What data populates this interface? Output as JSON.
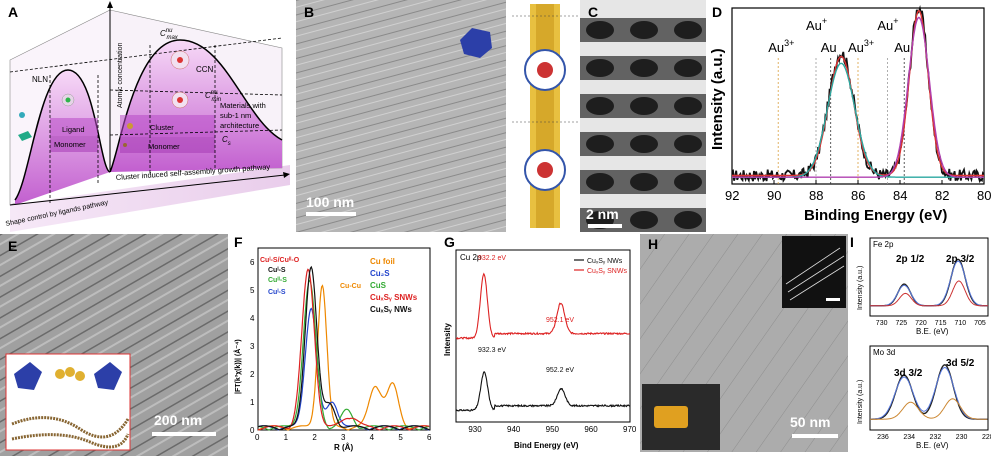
{
  "panel_labels": {
    "A": "A",
    "B": "B",
    "C": "C",
    "D": "D",
    "E": "E",
    "F": "F",
    "G": "G",
    "H": "H",
    "I": "I"
  },
  "panel_A": {
    "atomic_concentration": "Atomic concentration",
    "cnu_max": "C",
    "cnu_max_sup": "nu",
    "cnu_max_sub": "max",
    "ccn": "CCN",
    "nln": "NLN",
    "cnu_min": "C",
    "cnu_min_sup": "nu",
    "cnu_min_sub": "min",
    "materials": [
      "Materials with",
      "sub-1 nm",
      "architecture"
    ],
    "ligand": "Ligand",
    "monomer_left": "Monomer",
    "cluster": "Cluster",
    "cs": "C",
    "cs_sub": "s",
    "monomer_right": "Monomer",
    "pathway_left": "Shape control by ligands pathway",
    "pathway_right": "Cluster induced self-assembly growth pathway"
  },
  "panel_B": {
    "scale": "100 nm"
  },
  "panel_C": {
    "scale": "2 nm"
  },
  "panel_E": {
    "scale": "200 nm"
  },
  "panel_H": {
    "scale": "50 nm"
  },
  "chart_data": [
    {
      "id": "D",
      "type": "line",
      "xlabel": "Binding Energy (eV)",
      "ylabel": "Intensity (a.u.)",
      "xlim": [
        92,
        80
      ],
      "xticks": [
        "92",
        "90",
        "88",
        "86",
        "84",
        "82",
        "80"
      ],
      "annotations": [
        {
          "text": "Au",
          "sup": "3+",
          "x": 89.8
        },
        {
          "text": "Au",
          "sup": "+",
          "x": 88.0
        },
        {
          "text": "Au",
          "sup": "",
          "x": 87.3
        },
        {
          "text": "Au",
          "sup": "3+",
          "x": 86.0
        },
        {
          "text": "Au",
          "sup": "+",
          "x": 84.6
        },
        {
          "text": "Au",
          "sup": "",
          "x": 83.8
        }
      ],
      "series": [
        {
          "color": "#111111",
          "peaks": [
            [
              86.8,
              0.72,
              0.6
            ],
            [
              83.1,
              0.99,
              0.45
            ]
          ],
          "noise": 0.035,
          "baseline": 0.05
        },
        {
          "color": "#dd3333",
          "peaks": [
            [
              86.8,
              0.7,
              0.6
            ],
            [
              83.1,
              0.97,
              0.45
            ]
          ],
          "noise": 0,
          "baseline": 0.05
        },
        {
          "color": "#2aa8a0",
          "peaks": [
            [
              86.8,
              0.67,
              0.65
            ]
          ],
          "noise": 0,
          "baseline": 0.04
        },
        {
          "color": "#b040b0",
          "peaks": [
            [
              83.1,
              0.94,
              0.5
            ]
          ],
          "noise": 0,
          "baseline": 0.04
        }
      ]
    },
    {
      "id": "F",
      "type": "line",
      "xlabel": "R (Å)",
      "ylabel": "|FT(k³χ(k))| (Å⁻⁴)",
      "xlim": [
        0,
        6
      ],
      "ylim": [
        0,
        6.5
      ],
      "xticks": [
        "0",
        "1",
        "2",
        "3",
        "4",
        "5",
        "6"
      ],
      "yticks": [
        "0",
        "1",
        "2",
        "3",
        "4",
        "5",
        "6"
      ],
      "annotations": [
        {
          "text": "Cuᴵ-S/Cuᴵᴵ-O",
          "color": "#dd2222"
        },
        {
          "text": "Cuᴵ-S",
          "color": "#111111"
        },
        {
          "text": "Cuᴵᴵ-S",
          "color": "#33aa33"
        },
        {
          "text": "Cuᴵ-S",
          "color": "#2244cc"
        },
        {
          "text": "Cu-Cu",
          "color": "#ee8800"
        }
      ],
      "series": [
        {
          "name": "Cu foil",
          "color": "#ee8800",
          "peaks": [
            [
              2.24,
              5.1,
              0.16
            ],
            [
              4.1,
              1.5,
              0.22
            ],
            [
              4.7,
              1.5,
              0.2
            ]
          ]
        },
        {
          "name": "Cu₂S",
          "color": "#2244cc",
          "peaks": [
            [
              1.85,
              4.3,
              0.2
            ],
            [
              2.6,
              0.9,
              0.2
            ]
          ]
        },
        {
          "name": "CuS",
          "color": "#33aa33",
          "peaks": [
            [
              1.8,
              5.2,
              0.22
            ],
            [
              3.1,
              0.6,
              0.2
            ]
          ]
        },
        {
          "name": "CuₓSᵧ SNWs",
          "color": "#dd2222",
          "peaks": [
            [
              1.75,
              5.6,
              0.22
            ],
            [
              3.2,
              0.4,
              0.25
            ]
          ]
        },
        {
          "name": "CuₓSᵧ NWs",
          "color": "#111111",
          "peaks": [
            [
              1.85,
              5.8,
              0.2
            ],
            [
              2.5,
              0.8,
              0.2
            ]
          ]
        }
      ]
    },
    {
      "id": "G",
      "type": "line",
      "title": "Cu 2p",
      "xlabel": "Bind Energy (eV)",
      "ylabel": "Intensity",
      "xlim": [
        925,
        970
      ],
      "xticks": [
        "930",
        "940",
        "950",
        "960",
        "970"
      ],
      "series": [
        {
          "name": "CuₓSᵧ NWs",
          "color": "#111111",
          "peaks": [
            [
              932.3,
              1.0,
              0.9
            ],
            [
              952.2,
              0.45,
              1.0
            ]
          ],
          "offset": 0
        },
        {
          "name": "CuₓSᵧ SNWs",
          "color": "#dd2222",
          "peaks": [
            [
              932.2,
              1.7,
              0.9
            ],
            [
              952.1,
              0.8,
              1.0
            ]
          ],
          "offset": 1.9
        }
      ],
      "peak_labels": [
        {
          "text": "932.2 eV",
          "color": "#dd2222"
        },
        {
          "text": "952.1 eV",
          "color": "#dd2222"
        },
        {
          "text": "932.3 eV",
          "color": "#111111"
        },
        {
          "text": "952.2 eV",
          "color": "#111111"
        }
      ]
    },
    {
      "id": "I-top",
      "type": "line",
      "title": "Fe 2p",
      "xlabel": "B.E. (eV)",
      "ylabel": "Intensity (a.u.)",
      "xlim": [
        733,
        703
      ],
      "xticks": [
        "730",
        "725",
        "720",
        "715",
        "710",
        "705"
      ],
      "peak_labels": [
        "2p 1/2",
        "2p 3/2"
      ],
      "series": [
        {
          "color": "#222222",
          "peaks": [
            [
              724.3,
              0.35,
              1.6
            ],
            [
              710.6,
              0.75,
              1.8
            ]
          ]
        },
        {
          "color": "#5577dd",
          "peaks": [
            [
              724.3,
              0.33,
              1.7
            ],
            [
              710.6,
              0.72,
              1.9
            ]
          ]
        },
        {
          "color": "#cc3333",
          "peaks": [
            [
              724.0,
              0.2,
              1.5
            ],
            [
              710.4,
              0.4,
              1.6
            ]
          ]
        }
      ]
    },
    {
      "id": "I-bottom",
      "type": "line",
      "title": "Mo 3d",
      "xlabel": "B.E. (eV)",
      "ylabel": "Intensity (a.u.)",
      "xlim": [
        237,
        228
      ],
      "xticks": [
        "236",
        "234",
        "232",
        "230",
        "228"
      ],
      "peak_labels": [
        "3d 3/2",
        "3d 5/2"
      ],
      "series": [
        {
          "color": "#222222",
          "peaks": [
            [
              234.4,
              0.65,
              0.65
            ],
            [
              231.3,
              0.8,
              0.65
            ]
          ]
        },
        {
          "color": "#5577dd",
          "peaks": [
            [
              234.4,
              0.62,
              0.7
            ],
            [
              231.3,
              0.76,
              0.7
            ]
          ]
        },
        {
          "color": "#cc8833",
          "peaks": [
            [
              233.9,
              0.25,
              0.6
            ],
            [
              230.7,
              0.3,
              0.6
            ]
          ]
        }
      ]
    }
  ]
}
